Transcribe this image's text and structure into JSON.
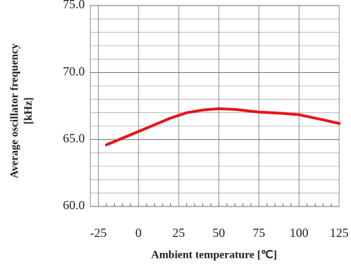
{
  "chart_data": {
    "type": "line",
    "xlabel": "Ambient temperature [℃]",
    "ylabel": [
      "Average oscillator frequency",
      "[kHz]"
    ],
    "x": [
      -20,
      -10,
      0,
      10,
      20,
      30,
      40,
      50,
      60,
      75,
      90,
      100,
      110,
      125
    ],
    "series": [
      {
        "name": "Average oscillator frequency",
        "color": "#e8141a",
        "values": [
          64.6,
          65.1,
          65.6,
          66.1,
          66.6,
          67.0,
          67.2,
          67.3,
          67.25,
          67.05,
          66.95,
          66.85,
          66.6,
          66.2
        ]
      }
    ],
    "xlim": [
      -30,
      125
    ],
    "xticks": [
      -25,
      0,
      25,
      50,
      75,
      100,
      125
    ],
    "xminor": [
      -25,
      -20,
      -15,
      -10,
      -5,
      0,
      5,
      10,
      15,
      20,
      25,
      30,
      35,
      40,
      45,
      50,
      55,
      60,
      65,
      70,
      75,
      80,
      85,
      90,
      95,
      100,
      105,
      110,
      115,
      120,
      125
    ],
    "ylim": [
      60,
      75
    ],
    "yticks": [
      {
        "value": 60,
        "label": "60.0"
      },
      {
        "value": 65,
        "label": "65.0"
      },
      {
        "value": 70,
        "label": "70.0"
      },
      {
        "value": 75,
        "label": "75.0"
      }
    ],
    "yminor": [
      61,
      62,
      63,
      64,
      66,
      67,
      68,
      69,
      71,
      72,
      73,
      74
    ],
    "grid": true
  }
}
